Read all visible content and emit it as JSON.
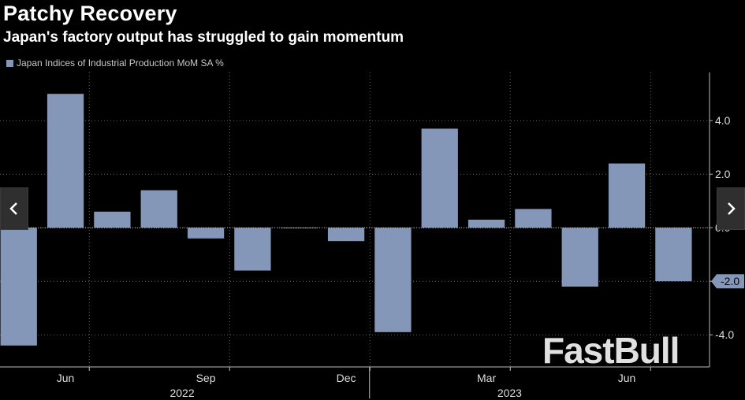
{
  "header": {
    "title": "Patchy Recovery",
    "subtitle": "Japan's factory output has struggled to gain momentum"
  },
  "legend": {
    "label": "Japan Indices of Industrial Production MoM SA %",
    "color": "#8497b8"
  },
  "watermark": "FastBull",
  "nav": {
    "prev_icon": "chevron-left-icon",
    "next_icon": "chevron-right-icon"
  },
  "chart_data": {
    "type": "bar",
    "categories": [
      "2022-05",
      "2022-06",
      "2022-07",
      "2022-08",
      "2022-09",
      "2022-10",
      "2022-11",
      "2022-12",
      "2023-01",
      "2023-02",
      "2023-03",
      "2023-04",
      "2023-05",
      "2023-06",
      "2023-07"
    ],
    "series": [
      {
        "name": "Japan Indices of Industrial Production MoM SA %",
        "values": [
          -4.4,
          5.0,
          0.6,
          1.4,
          -0.4,
          -1.6,
          0.0,
          -0.5,
          -3.9,
          3.7,
          0.3,
          0.7,
          -2.2,
          2.4,
          -2.0
        ]
      }
    ],
    "ylim": [
      -5.2,
      5.8
    ],
    "yticks": [
      -4.0,
      -2.0,
      0.0,
      2.0,
      4.0
    ],
    "ytick_labels": [
      "-4.0",
      "-2.0",
      "0.0",
      "2.0",
      "4.0"
    ],
    "last_value_label": "-2.0",
    "month_labels": [
      {
        "index": 1,
        "label": "Jun"
      },
      {
        "index": 4,
        "label": "Sep"
      },
      {
        "index": 7,
        "label": "Dec"
      },
      {
        "index": 10,
        "label": "Mar"
      },
      {
        "index": 13,
        "label": "Jun"
      }
    ],
    "year_labels": [
      {
        "index": 4,
        "label": "2022"
      },
      {
        "index": 11,
        "label": "2023"
      }
    ],
    "bar_color": "#8497b8",
    "axis_side": "right",
    "grid": true
  }
}
